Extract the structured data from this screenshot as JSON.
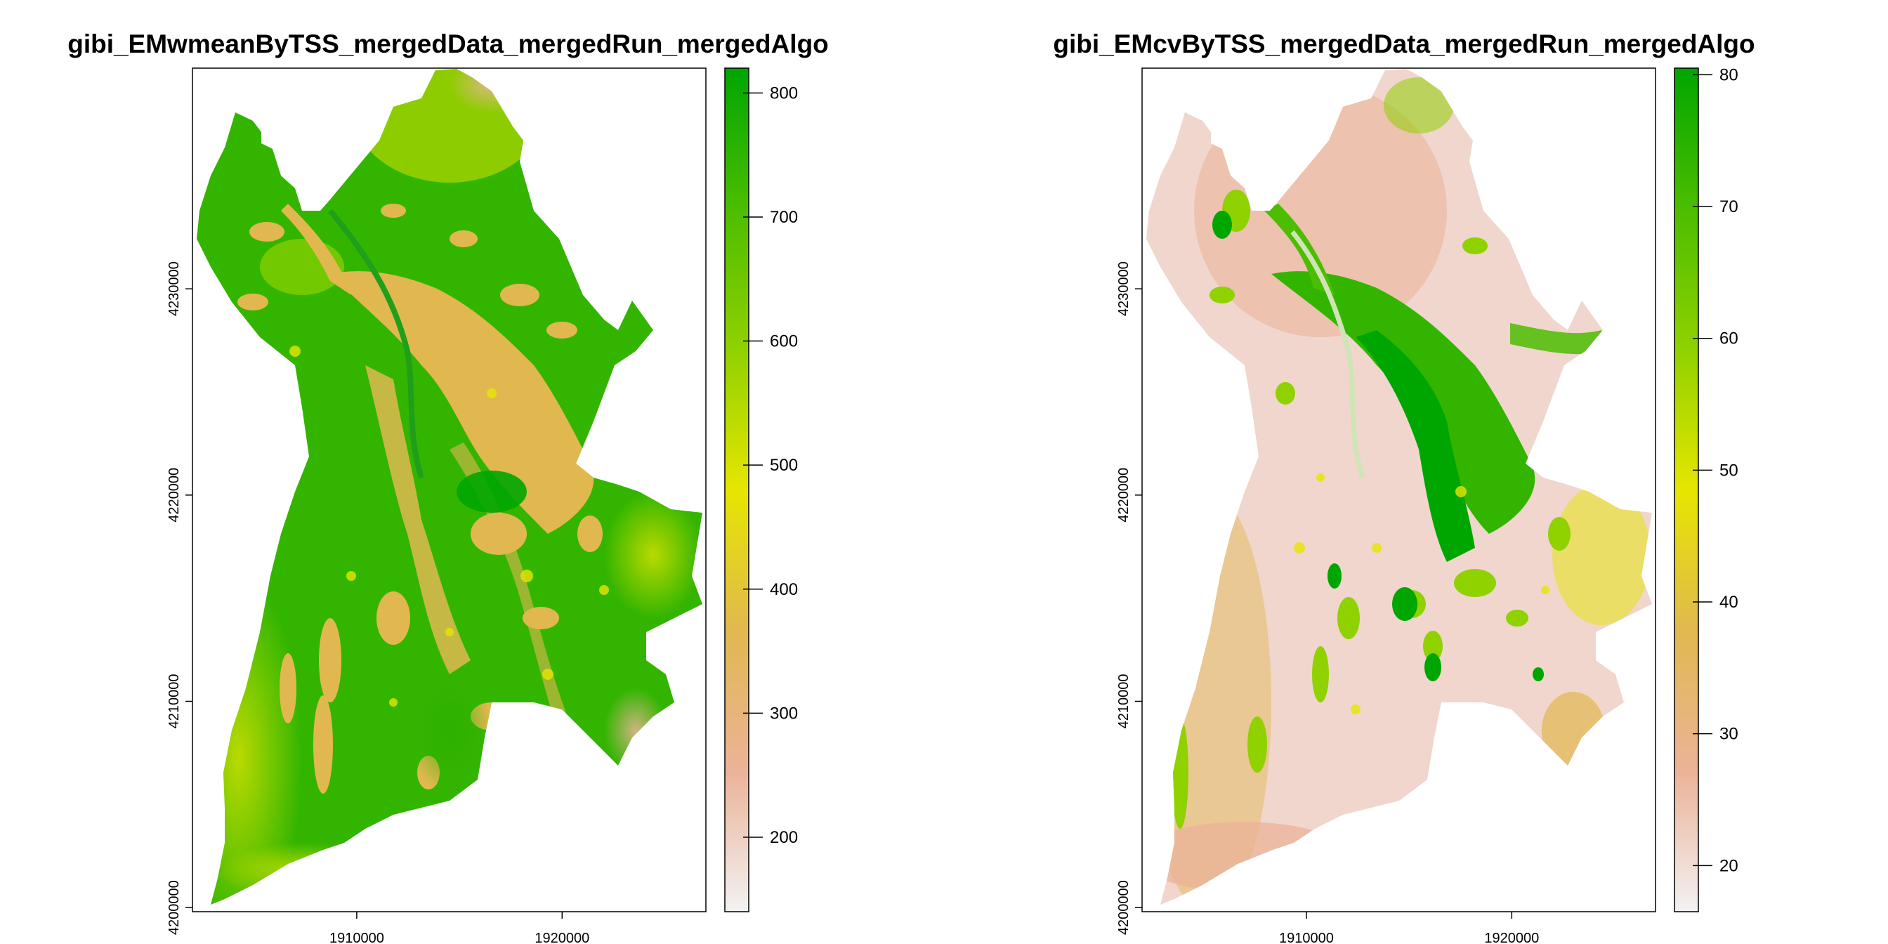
{
  "chart_data": [
    {
      "type": "heatmap",
      "title": "gibi_EMwmeanByTSS_mergedData_mergedRun_mergedAlgo",
      "x_ticks": [
        1910000,
        1920000
      ],
      "x_tick_labels": [
        "1910000",
        "1920000"
      ],
      "y_ticks": [
        4200000,
        4210000,
        4220000,
        4230000
      ],
      "y_tick_labels": [
        "4200000",
        "4210000",
        "4220000",
        "4230000"
      ],
      "xlim": [
        1902000,
        1927000
      ],
      "ylim": [
        4199800,
        4240700
      ],
      "legend": {
        "position": "right",
        "range": [
          140,
          820
        ],
        "ticks": [
          200,
          300,
          400,
          500,
          600,
          700,
          800
        ],
        "tick_labels": [
          "200",
          "300",
          "400",
          "500",
          "600",
          "700",
          "800"
        ],
        "colors": [
          "#f2f2f2",
          "#ebb398",
          "#e1b850",
          "#e6e600",
          "#90d100",
          "#4cbd00",
          "#00a600"
        ]
      }
    },
    {
      "type": "heatmap",
      "title": "gibi_EMcvByTSS_mergedData_mergedRun_mergedAlgo",
      "x_ticks": [
        1910000,
        1920000
      ],
      "x_tick_labels": [
        "1910000",
        "1920000"
      ],
      "y_ticks": [
        4200000,
        4210000,
        4220000,
        4230000
      ],
      "y_tick_labels": [
        "4200000",
        "4210000",
        "4220000",
        "4230000"
      ],
      "xlim": [
        1902000,
        1927000
      ],
      "ylim": [
        4199800,
        4240700
      ],
      "legend": {
        "position": "right",
        "range": [
          16.5,
          80.5
        ],
        "ticks": [
          20,
          30,
          40,
          50,
          60,
          70,
          80
        ],
        "tick_labels": [
          "20",
          "30",
          "40",
          "50",
          "60",
          "70",
          "80"
        ],
        "colors": [
          "#f2f2f2",
          "#ebb398",
          "#e1b850",
          "#e6e600",
          "#90d100",
          "#4cbd00",
          "#00a600"
        ]
      }
    }
  ]
}
